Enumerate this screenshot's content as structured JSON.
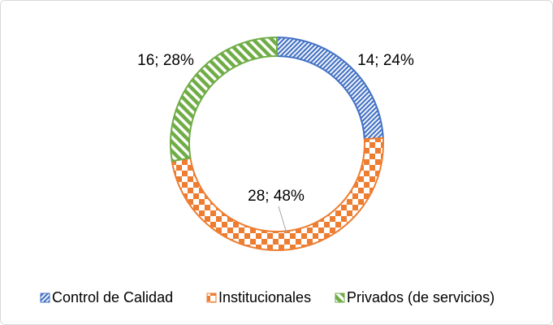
{
  "chart_data": {
    "type": "doughnut",
    "categories": [
      "Control de Calidad",
      "Institucionales",
      "Privados (de servicios)"
    ],
    "values": [
      14,
      28,
      16
    ],
    "value_labels": [
      "14; 24%",
      "28; 48%",
      "16; 28%"
    ],
    "colors": [
      "#4472c4",
      "#ed7d31",
      "#70ad47"
    ],
    "legend": "bottom"
  }
}
